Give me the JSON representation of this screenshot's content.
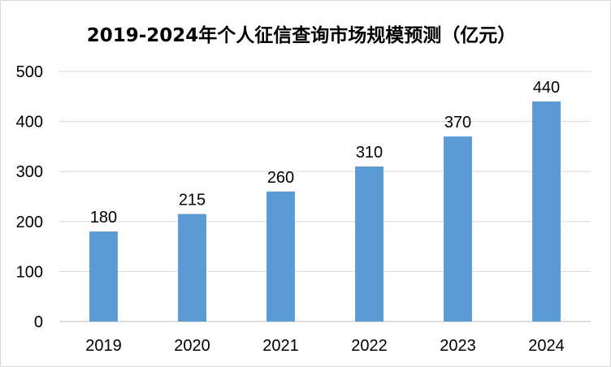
{
  "chart_data": {
    "type": "bar",
    "title": "2019-2024年个人征信查询市场规模预测（亿元）",
    "categories": [
      "2019",
      "2020",
      "2021",
      "2022",
      "2023",
      "2024"
    ],
    "values": [
      180,
      215,
      260,
      310,
      370,
      440
    ],
    "data_labels": [
      "180",
      "215",
      "260",
      "310",
      "370",
      "440"
    ],
    "xlabel": "",
    "ylabel": "",
    "ylim": [
      0,
      500
    ],
    "yticks": [
      "0",
      "100",
      "200",
      "300",
      "400",
      "500"
    ],
    "grid": true,
    "legend": "none",
    "bar_color": "#5b9bd5",
    "grid_color": "#d9d9d9",
    "axis_color": "#bfbfbf"
  }
}
